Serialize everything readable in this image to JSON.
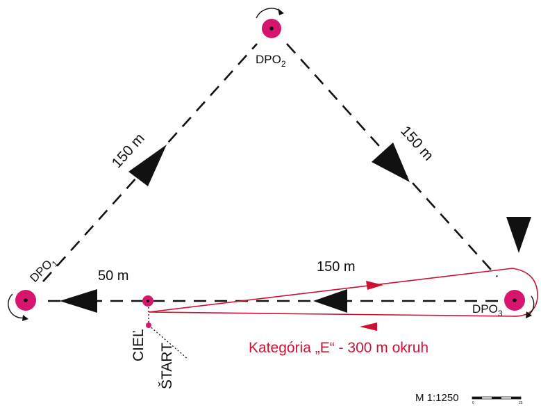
{
  "buoys": {
    "dpo1": {
      "name": "DPO",
      "sub": "1"
    },
    "dpo2": {
      "name": "DPO",
      "sub": "2"
    },
    "dpo3": {
      "name": "DPO",
      "sub": "3"
    }
  },
  "distances": {
    "leg_left": "150 m",
    "leg_right": "150 m",
    "leg_bottom": "150 m",
    "start_segment": "50 m"
  },
  "labels": {
    "finish": "CIEĽ",
    "start": "ŠTART",
    "category_loop": "Kategória „E“ - 300 m okruh"
  },
  "scale": {
    "text": "M 1:1250",
    "tick_start": "0",
    "tick_end": "25"
  },
  "colors": {
    "buoy": "#d6156f",
    "route": "#111111",
    "loop": "#cc1133"
  }
}
